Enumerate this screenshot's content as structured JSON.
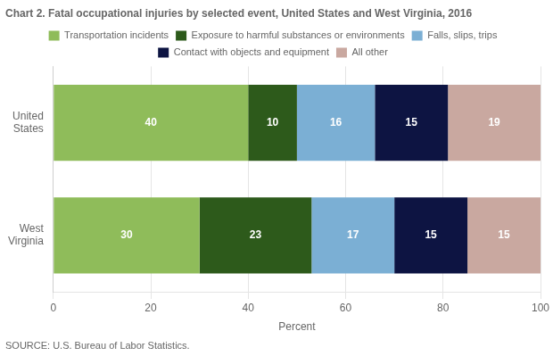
{
  "chart_data": {
    "type": "bar",
    "orientation": "horizontal",
    "stacked": true,
    "title": "Chart 2. Fatal occupational injuries by selected event, United States and West Virginia, 2016",
    "annotations": [
      "SOURCE: U.S. Bureau of Labor Statistics."
    ],
    "categories": [
      "United\nStates",
      "West\nVirginia"
    ],
    "series": [
      {
        "name": "Transportation incidents",
        "color": "#8fbc5a",
        "values": [
          40,
          30
        ]
      },
      {
        "name": "Exposure to harmful substances or environments",
        "color": "#2d5a1b",
        "values": [
          10,
          23
        ]
      },
      {
        "name": "Falls, slips, trips",
        "color": "#7bafd4",
        "values": [
          16,
          17
        ]
      },
      {
        "name": "Contact with objects and equipment",
        "color": "#0d1442",
        "values": [
          15,
          15
        ]
      },
      {
        "name": "All other",
        "color": "#c9a8a0",
        "values": [
          19,
          15
        ]
      }
    ],
    "xlabel": "Percent",
    "xlim": [
      0,
      100
    ],
    "xticks": [
      0,
      20,
      40,
      60,
      80,
      100
    ],
    "grid": true,
    "legend": "top",
    "data_labels": true
  }
}
